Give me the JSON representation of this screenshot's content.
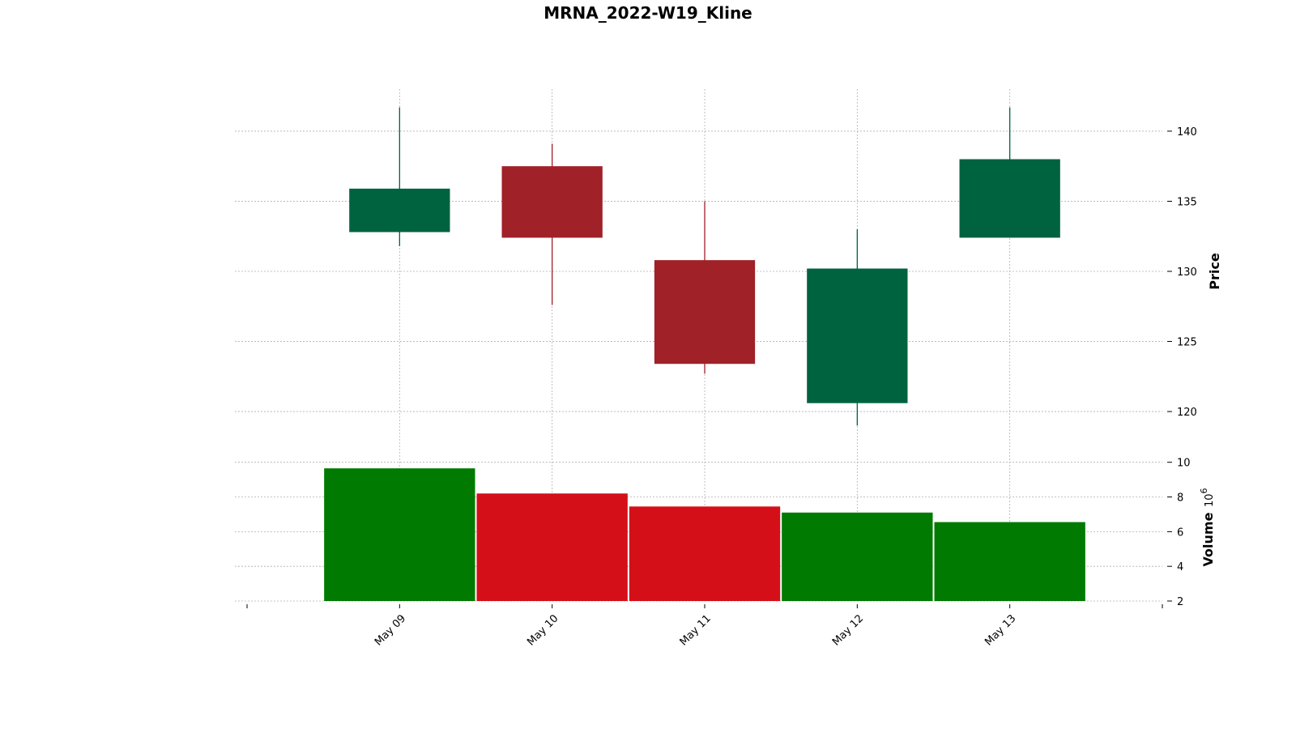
{
  "chart_data": {
    "type": "candlestick",
    "title": "MRNA_2022-W19_Kline",
    "price_axis": {
      "label": "Price",
      "ylim": [
        117,
        143
      ],
      "ticks": [
        120,
        125,
        130,
        135,
        140
      ]
    },
    "volume_axis": {
      "label": "Volume",
      "multiplier": "10",
      "exponent": "6",
      "ylim": [
        2,
        10.5
      ],
      "ticks": [
        2,
        4,
        6,
        8,
        10
      ]
    },
    "categories": [
      "May 09",
      "May 10",
      "May 11",
      "May 12",
      "May 13"
    ],
    "ohlc": [
      {
        "date": "May 09",
        "open": 132.8,
        "high": 141.7,
        "low": 131.8,
        "close": 135.9
      },
      {
        "date": "May 10",
        "open": 137.5,
        "high": 139.1,
        "low": 127.6,
        "close": 132.4
      },
      {
        "date": "May 11",
        "open": 130.8,
        "high": 135.0,
        "low": 122.7,
        "close": 123.4
      },
      {
        "date": "May 12",
        "open": 120.6,
        "high": 133.0,
        "low": 119.0,
        "close": 130.2
      },
      {
        "date": "May 13",
        "open": 132.4,
        "high": 141.7,
        "low": 132.4,
        "close": 138.0
      }
    ],
    "volume": [
      9.65,
      8.2,
      7.45,
      7.1,
      6.55
    ],
    "grid": true,
    "colors": {
      "up_candle": "#006340",
      "down_candle": "#a02128",
      "up_volume": "#007a00",
      "down_volume": "#d50f18",
      "grid": "#b0b0b0"
    }
  }
}
